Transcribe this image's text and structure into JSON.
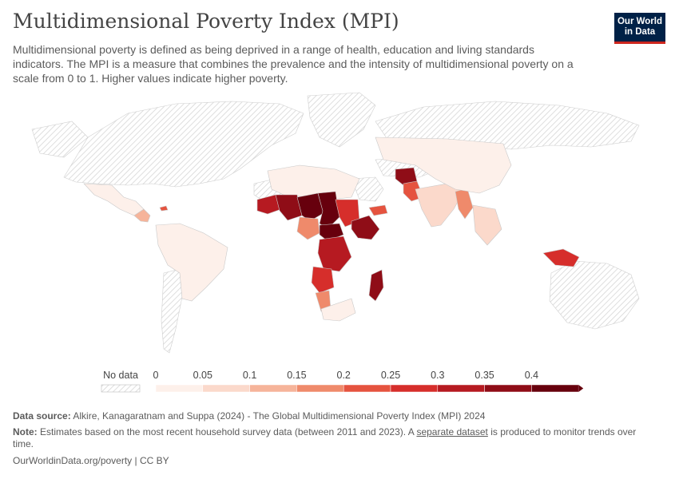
{
  "header": {
    "title": "Multidimensional Poverty Index (MPI)",
    "subtitle": "Multidimensional poverty is defined as being deprived in a range of health, education and living standards indicators. The MPI is a measure that combines the prevalence and the intensity of multidimensional poverty on a scale from 0 to 1. Higher values indicate higher poverty.",
    "logo_line1": "Our World",
    "logo_line2": "in Data"
  },
  "legend": {
    "no_data_label": "No data",
    "ticks": [
      "0",
      "0.05",
      "0.1",
      "0.15",
      "0.2",
      "0.25",
      "0.3",
      "0.35",
      "0.4"
    ],
    "colors": [
      "#fdf0ea",
      "#fbd9cb",
      "#f6b49a",
      "#ef8a6b",
      "#e5533f",
      "#d62e2b",
      "#b61a21",
      "#8f0d17",
      "#67000d"
    ],
    "no_data_color": "#dcdcdc"
  },
  "footer": {
    "source_label": "Data source:",
    "source_text": "Alkire, Kanagaratnam and Suppa (2024) - The Global Multidimensional Poverty Index (MPI) 2024",
    "note_label": "Note:",
    "note_text_before": "Estimates based on the most recent household survey data (between 2011 and 2023). A",
    "note_link": "separate dataset",
    "note_text_after": "is produced to monitor trends over time.",
    "url": "OurWorldinData.org/poverty | CC BY"
  },
  "map_data": {
    "metric": "Multidimensional Poverty Index (MPI)",
    "scale": [
      0,
      0.45
    ],
    "regions": [
      {
        "name": "Mexico",
        "value": 0.03
      },
      {
        "name": "Central America",
        "value": 0.12
      },
      {
        "name": "Haiti",
        "value": 0.2
      },
      {
        "name": "South America",
        "value": 0.02
      },
      {
        "name": "North Africa",
        "value": 0.02
      },
      {
        "name": "Mauritania",
        "value": 0.33
      },
      {
        "name": "Mali",
        "value": 0.38
      },
      {
        "name": "Niger",
        "value": 0.6
      },
      {
        "name": "Chad",
        "value": 0.52
      },
      {
        "name": "Sudan",
        "value": 0.28
      },
      {
        "name": "Ethiopia",
        "value": 0.37
      },
      {
        "name": "Nigeria",
        "value": 0.18
      },
      {
        "name": "Central African Republic",
        "value": 0.46
      },
      {
        "name": "DR Congo",
        "value": 0.33
      },
      {
        "name": "Angola",
        "value": 0.28
      },
      {
        "name": "Namibia",
        "value": 0.17
      },
      {
        "name": "South Africa",
        "value": 0.03
      },
      {
        "name": "Madagascar",
        "value": 0.38
      },
      {
        "name": "Yemen",
        "value": 0.24
      },
      {
        "name": "Afghanistan",
        "value": 0.36
      },
      {
        "name": "Pakistan",
        "value": 0.2
      },
      {
        "name": "India",
        "value": 0.07
      },
      {
        "name": "Myanmar",
        "value": 0.18
      },
      {
        "name": "China",
        "value": 0.02
      },
      {
        "name": "Papua New Guinea",
        "value": 0.26
      }
    ]
  }
}
